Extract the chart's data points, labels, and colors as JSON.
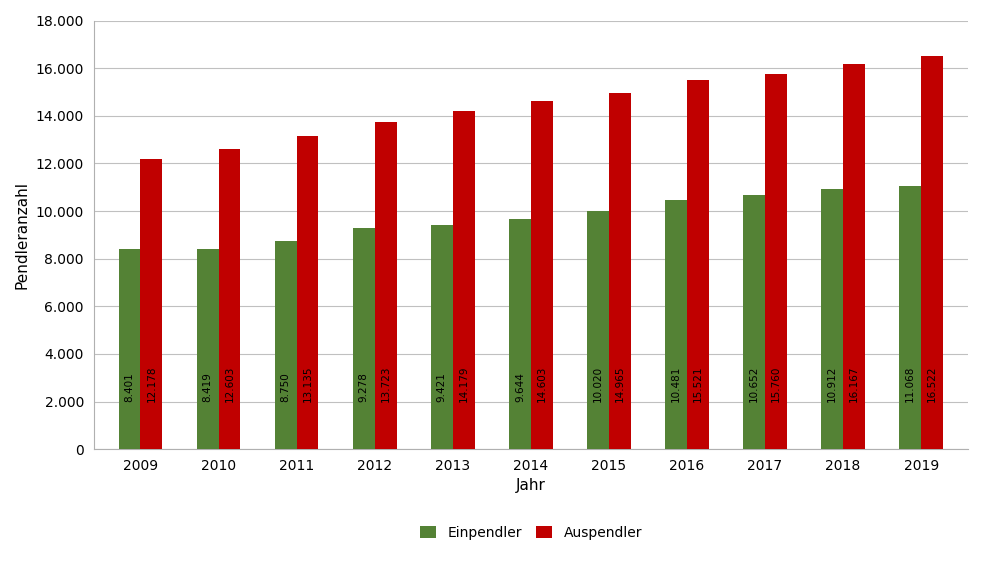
{
  "years": [
    2009,
    2010,
    2011,
    2012,
    2013,
    2014,
    2015,
    2016,
    2017,
    2018,
    2019
  ],
  "einpendler": [
    8401,
    8419,
    8750,
    9278,
    9421,
    9644,
    10020,
    10481,
    10652,
    10912,
    11068
  ],
  "auspendler": [
    12178,
    12603,
    13135,
    13723,
    14179,
    14603,
    14965,
    15521,
    15760,
    16167,
    16522
  ],
  "einpendler_color": "#548235",
  "auspendler_color": "#C00000",
  "bar_width": 0.28,
  "xlabel": "Jahr",
  "ylabel": "Pendleranzahl",
  "legend_einpendler": "Einpendler",
  "legend_auspendler": "Auspendler",
  "ylim": [
    0,
    18000
  ],
  "ytick_step": 2000,
  "background_color": "#ffffff",
  "grid_color": "#c0c0c0",
  "label_fontsize": 7.5,
  "axis_label_fontsize": 11,
  "tick_fontsize": 10,
  "legend_fontsize": 10
}
